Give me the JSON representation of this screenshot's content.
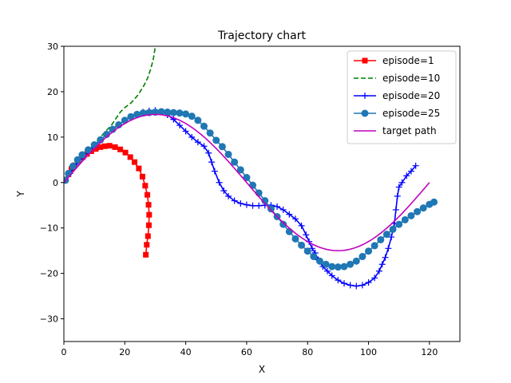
{
  "chart_data": {
    "type": "line",
    "title": "Trajectory chart",
    "xlabel": "X",
    "ylabel": "Y",
    "xlim": [
      0,
      130
    ],
    "ylim": [
      -35,
      30
    ],
    "xticks": [
      0,
      20,
      40,
      60,
      80,
      100,
      120
    ],
    "yticks": [
      -30,
      -20,
      -10,
      0,
      10,
      20,
      30
    ],
    "grid": false,
    "legend_position": "top-right",
    "series": [
      {
        "name": "episode=1",
        "color": "#ff0000",
        "line_style": "solid",
        "marker": "square",
        "points": [
          [
            0.5,
            0.5
          ],
          [
            1.5,
            1.8
          ],
          [
            2.5,
            3.0
          ],
          [
            3.5,
            3.8
          ],
          [
            4.8,
            4.8
          ],
          [
            6.2,
            5.6
          ],
          [
            7.6,
            6.3
          ],
          [
            9.0,
            6.9
          ],
          [
            10.5,
            7.4
          ],
          [
            12.0,
            7.8
          ],
          [
            13.5,
            8.0
          ],
          [
            15.0,
            8.1
          ],
          [
            16.8,
            7.8
          ],
          [
            18.5,
            7.3
          ],
          [
            20.2,
            6.6
          ],
          [
            21.8,
            5.6
          ],
          [
            23.2,
            4.5
          ],
          [
            24.6,
            3.1
          ],
          [
            25.8,
            1.3
          ],
          [
            26.7,
            -0.7
          ],
          [
            27.4,
            -2.7
          ],
          [
            27.8,
            -4.9
          ],
          [
            28.0,
            -7.1
          ],
          [
            27.9,
            -9.4
          ],
          [
            27.6,
            -11.8
          ],
          [
            27.2,
            -13.7
          ],
          [
            26.9,
            -15.9
          ]
        ]
      },
      {
        "name": "episode=10",
        "color": "#008000",
        "line_style": "dashed",
        "marker": "none",
        "points": [
          [
            0.5,
            0.5
          ],
          [
            2,
            2
          ],
          [
            4,
            4
          ],
          [
            6,
            5.5
          ],
          [
            8,
            6.8
          ],
          [
            10,
            8.2
          ],
          [
            12,
            10
          ],
          [
            14,
            11.5
          ],
          [
            15.5,
            12.5
          ],
          [
            17,
            14
          ],
          [
            18.5,
            15.5
          ],
          [
            20,
            16.5
          ],
          [
            22,
            17.5
          ],
          [
            24,
            19
          ],
          [
            26,
            21
          ],
          [
            27.5,
            23
          ],
          [
            28.5,
            25
          ],
          [
            29.3,
            27
          ],
          [
            29.8,
            29
          ],
          [
            30,
            30
          ]
        ]
      },
      {
        "name": "episode=20",
        "color": "#0000ff",
        "line_style": "solid",
        "marker": "plus",
        "points": [
          [
            0.5,
            0.5
          ],
          [
            2,
            2
          ],
          [
            4,
            4
          ],
          [
            6,
            5.5
          ],
          [
            8,
            6.8
          ],
          [
            10,
            8
          ],
          [
            12,
            9.3
          ],
          [
            14,
            10.6
          ],
          [
            16,
            11.8
          ],
          [
            18,
            12.8
          ],
          [
            20,
            13.7
          ],
          [
            22,
            14.5
          ],
          [
            24,
            15.1
          ],
          [
            26,
            15.5
          ],
          [
            28,
            15.8
          ],
          [
            30,
            15.9
          ],
          [
            32,
            15.6
          ],
          [
            34,
            14.9
          ],
          [
            36,
            13.9
          ],
          [
            38,
            12.6
          ],
          [
            40,
            11.3
          ],
          [
            42,
            10.0
          ],
          [
            44,
            8.9
          ],
          [
            46,
            8.0
          ],
          [
            47.5,
            6.5
          ],
          [
            48.5,
            4.5
          ],
          [
            49.5,
            2.5
          ],
          [
            51,
            0
          ],
          [
            52.5,
            -1.8
          ],
          [
            54,
            -3
          ],
          [
            56,
            -4
          ],
          [
            58,
            -4.6
          ],
          [
            60,
            -4.9
          ],
          [
            62,
            -5.1
          ],
          [
            64,
            -5.1
          ],
          [
            66,
            -5.0
          ],
          [
            68,
            -5.0
          ],
          [
            70,
            -5.3
          ],
          [
            72,
            -6.0
          ],
          [
            74,
            -7.0
          ],
          [
            76,
            -8.0
          ],
          [
            78,
            -9.5
          ],
          [
            79.5,
            -11.5
          ],
          [
            80.5,
            -13
          ],
          [
            81.5,
            -14.5
          ],
          [
            82.5,
            -15.5
          ],
          [
            83.5,
            -17
          ],
          [
            85,
            -18.5
          ],
          [
            86.5,
            -19.5
          ],
          [
            88,
            -20.5
          ],
          [
            90,
            -21.5
          ],
          [
            92,
            -22.2
          ],
          [
            94,
            -22.6
          ],
          [
            96,
            -22.8
          ],
          [
            98,
            -22.6
          ],
          [
            100,
            -22.0
          ],
          [
            102,
            -21.0
          ],
          [
            103.5,
            -19.5
          ],
          [
            104.5,
            -18
          ],
          [
            105.5,
            -16.5
          ],
          [
            106.5,
            -14.5
          ],
          [
            107.5,
            -12
          ],
          [
            108.5,
            -9
          ],
          [
            109,
            -6
          ],
          [
            109.5,
            -3
          ],
          [
            110,
            -1
          ],
          [
            111,
            0
          ],
          [
            112.5,
            1.5
          ],
          [
            114,
            2.5
          ],
          [
            115.5,
            3.7
          ]
        ]
      },
      {
        "name": "episode=25",
        "color": "#1f77b4",
        "line_style": "solid",
        "marker": "circle",
        "points": [
          [
            0.5,
            0.5
          ],
          [
            1.5,
            2
          ],
          [
            3,
            3.6
          ],
          [
            4.5,
            5.0
          ],
          [
            6,
            6.1
          ],
          [
            8,
            7.2
          ],
          [
            10,
            8.3
          ],
          [
            12,
            9.4
          ],
          [
            14,
            10.6
          ],
          [
            16,
            11.7
          ],
          [
            18,
            12.7
          ],
          [
            20,
            13.7
          ],
          [
            22,
            14.5
          ],
          [
            24,
            15.0
          ],
          [
            26,
            15.3
          ],
          [
            28,
            15.4
          ],
          [
            30,
            15.5
          ],
          [
            32,
            15.6
          ],
          [
            34,
            15.5
          ],
          [
            36,
            15.4
          ],
          [
            38,
            15.3
          ],
          [
            40,
            15.1
          ],
          [
            42,
            14.6
          ],
          [
            44,
            13.7
          ],
          [
            46,
            12.4
          ],
          [
            48,
            10.9
          ],
          [
            50,
            9.3
          ],
          [
            52,
            7.9
          ],
          [
            54,
            6.2
          ],
          [
            56,
            4.5
          ],
          [
            58,
            2.8
          ],
          [
            60,
            1.1
          ],
          [
            62,
            -0.6
          ],
          [
            64,
            -2.3
          ],
          [
            66,
            -4.0
          ],
          [
            68,
            -5.8
          ],
          [
            70,
            -7.5
          ],
          [
            72,
            -9.2
          ],
          [
            74,
            -10.8
          ],
          [
            76,
            -12.4
          ],
          [
            78,
            -13.8
          ],
          [
            80,
            -15.1
          ],
          [
            82,
            -16.3
          ],
          [
            84,
            -17.3
          ],
          [
            86,
            -18.0
          ],
          [
            88,
            -18.5
          ],
          [
            90,
            -18.6
          ],
          [
            92,
            -18.5
          ],
          [
            94,
            -18.0
          ],
          [
            96,
            -17.3
          ],
          [
            98,
            -16.3
          ],
          [
            100,
            -15.1
          ],
          [
            102,
            -13.9
          ],
          [
            104,
            -12.6
          ],
          [
            106,
            -11.4
          ],
          [
            108,
            -10.3
          ],
          [
            110,
            -9.2
          ],
          [
            112,
            -8.2
          ],
          [
            114,
            -7.3
          ],
          [
            116,
            -6.4
          ],
          [
            118,
            -5.6
          ],
          [
            120,
            -4.8
          ],
          [
            121.5,
            -4.3
          ]
        ]
      },
      {
        "name": "target path",
        "color": "#bf00bf",
        "line_style": "solid",
        "marker": "none",
        "function": "15*sin(2*pi*x/120)",
        "x_range": [
          0,
          120
        ]
      }
    ]
  }
}
